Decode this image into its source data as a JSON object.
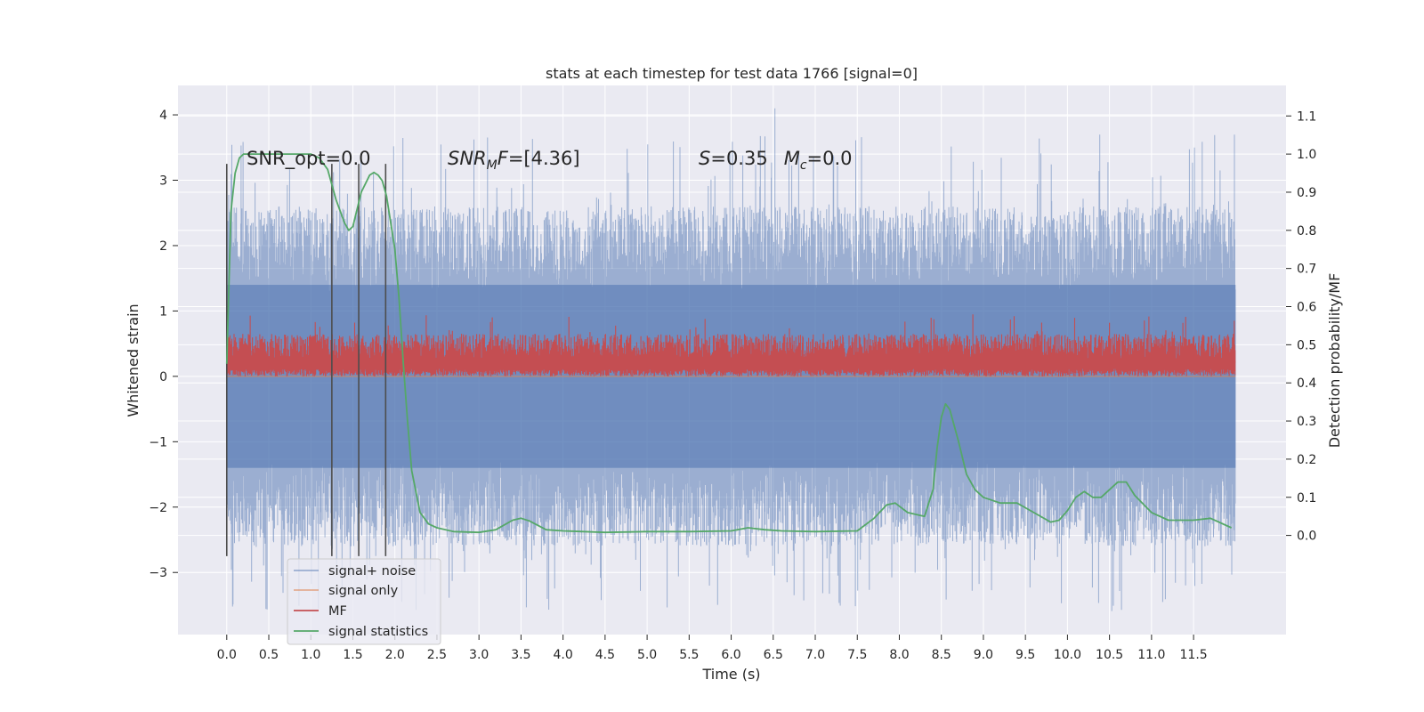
{
  "chart_data": {
    "type": "line",
    "title": "stats at each timestep for test data 1766 [signal=0]",
    "xlabel": "Time (s)",
    "ylabel": "Whitened strain",
    "y2label": "Detection probability/MF",
    "xlim": [
      -0.58,
      12.6
    ],
    "ylim": [
      -3.95,
      4.45
    ],
    "y2lim": [
      -0.26,
      1.18
    ],
    "x_ticks": [
      0.0,
      0.5,
      1.0,
      1.5,
      2.0,
      2.5,
      3.0,
      3.5,
      4.0,
      4.5,
      5.0,
      5.5,
      6.0,
      6.5,
      7.0,
      7.5,
      8.0,
      8.5,
      9.0,
      9.5,
      10.0,
      10.5,
      11.0,
      11.5
    ],
    "x_tick_labels": [
      "0.0",
      "0.5",
      "1.0",
      "1.5",
      "2.0",
      "2.5",
      "3.0",
      "3.5",
      "4.0",
      "4.5",
      "5.0",
      "5.5",
      "6.0",
      "6.5",
      "7.0",
      "7.5",
      "8.0",
      "8.5",
      "9.0",
      "9.5",
      "10.0",
      "10.5",
      "11.0",
      "11.5"
    ],
    "y_ticks": [
      -3,
      -2,
      -1,
      0,
      1,
      2,
      3,
      4
    ],
    "y_tick_labels": [
      "−3",
      "−2",
      "−1",
      "0",
      "1",
      "2",
      "3",
      "4"
    ],
    "y2_ticks": [
      0.0,
      0.1,
      0.2,
      0.3,
      0.4,
      0.5,
      0.6,
      0.7,
      0.8,
      0.9,
      1.0,
      1.1
    ],
    "y2_tick_labels": [
      "0.0",
      "0.1",
      "0.2",
      "0.3",
      "0.4",
      "0.5",
      "0.6",
      "0.7",
      "0.8",
      "0.9",
      "1.0",
      "1.1"
    ],
    "grid": true,
    "legend_position": "lower-left",
    "series": [
      {
        "name": "signal+ noise",
        "color": "#4c72b0",
        "axis": "left",
        "x_range": [
          0.0,
          12.0
        ],
        "envelope": {
          "typical_min": -2.6,
          "typical_max": 2.6,
          "extreme_min": -3.6,
          "extreme_max": 4.1
        }
      },
      {
        "name": "signal only",
        "color": "#dd8452",
        "axis": "left",
        "x_range": [
          0.0,
          12.0
        ],
        "values_constant": 0.0
      },
      {
        "name": "MF",
        "color": "#c44e52",
        "axis": "left",
        "x_range": [
          0.0,
          12.0
        ],
        "envelope": {
          "baseline": 0.22,
          "typical_max": 0.65,
          "extreme_max": 1.0,
          "min": 0.0
        }
      },
      {
        "name": "signal statistics",
        "color": "#55a868",
        "axis": "right",
        "x": [
          0.0,
          0.05,
          0.1,
          0.15,
          0.2,
          0.3,
          0.5,
          0.8,
          1.0,
          1.1,
          1.2,
          1.3,
          1.4,
          1.45,
          1.5,
          1.6,
          1.7,
          1.75,
          1.8,
          1.85,
          1.9,
          2.0,
          2.05,
          2.1,
          2.15,
          2.2,
          2.3,
          2.4,
          2.5,
          2.7,
          3.0,
          3.2,
          3.4,
          3.5,
          3.6,
          3.8,
          4.0,
          4.5,
          5.0,
          5.5,
          6.0,
          6.2,
          6.4,
          6.6,
          7.0,
          7.5,
          7.7,
          7.85,
          7.95,
          8.1,
          8.3,
          8.4,
          8.45,
          8.5,
          8.55,
          8.6,
          8.7,
          8.8,
          8.9,
          9.0,
          9.2,
          9.4,
          9.6,
          9.8,
          9.9,
          10.0,
          10.1,
          10.2,
          10.3,
          10.4,
          10.5,
          10.6,
          10.7,
          10.8,
          11.0,
          11.2,
          11.5,
          11.7,
          11.95
        ],
        "values": [
          0.45,
          0.85,
          0.95,
          0.99,
          1.0,
          1.0,
          1.0,
          1.0,
          1.0,
          0.99,
          0.96,
          0.88,
          0.82,
          0.8,
          0.81,
          0.9,
          0.945,
          0.952,
          0.945,
          0.93,
          0.89,
          0.75,
          0.62,
          0.45,
          0.3,
          0.17,
          0.06,
          0.03,
          0.02,
          0.01,
          0.008,
          0.015,
          0.04,
          0.045,
          0.038,
          0.015,
          0.012,
          0.008,
          0.01,
          0.01,
          0.012,
          0.02,
          0.015,
          0.012,
          0.01,
          0.012,
          0.045,
          0.08,
          0.085,
          0.06,
          0.05,
          0.12,
          0.23,
          0.31,
          0.345,
          0.33,
          0.25,
          0.16,
          0.12,
          0.1,
          0.085,
          0.085,
          0.06,
          0.035,
          0.04,
          0.065,
          0.1,
          0.115,
          0.1,
          0.1,
          0.12,
          0.14,
          0.14,
          0.105,
          0.06,
          0.04,
          0.04,
          0.045,
          0.02
        ]
      }
    ],
    "vertical_lines": {
      "color": "#4d4d4d",
      "x": [
        0.0,
        1.25,
        1.57,
        1.89
      ],
      "y_from": -2.75,
      "y_to": 3.25
    },
    "annotations": [
      {
        "text": "SNR_opt=0.0",
        "x": 0.2,
        "y": 3.2
      },
      {
        "text": "SNR_M F=[4.36]",
        "x": 2.6,
        "y": 3.2
      },
      {
        "text": "S=0.35   M_c=0.0",
        "x": 5.6,
        "y": 3.2
      }
    ]
  },
  "legend": {
    "items": [
      {
        "label": "signal+ noise",
        "color": "#4c72b0"
      },
      {
        "label": "signal only",
        "color": "#dd8452"
      },
      {
        "label": "MF",
        "color": "#c44e52"
      },
      {
        "label": "signal statistics",
        "color": "#55a868"
      }
    ]
  },
  "annot": {
    "snr_opt": "SNR_opt=0.0",
    "snr_mf_sym": "SNR",
    "snr_mf_sub": "M",
    "snr_mf_rest": "F",
    "snr_mf_val": "=[4.36]",
    "s_sym": "S",
    "s_val": "=0.35",
    "mc_sym": "M",
    "mc_sub": "c",
    "mc_val": "=0.0"
  },
  "colors": {
    "plot_bg": "#eaeaf2",
    "grid": "#ffffff",
    "text": "#262626"
  }
}
